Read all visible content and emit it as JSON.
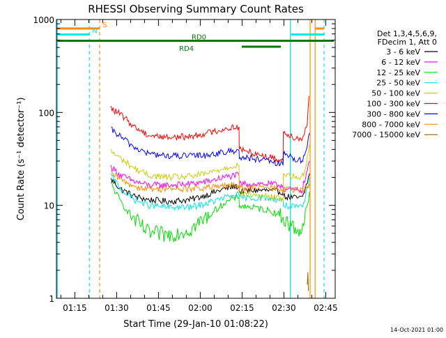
{
  "chart_data": {
    "type": "line",
    "title": "RHESSI Observing Summary Count Rates",
    "xlabel": "Start Time (29-Jan-10 01:08:22)",
    "ylabel": "Count Rate (s⁻¹ detector⁻¹)",
    "yscale": "log",
    "ylim": [
      1,
      1000
    ],
    "xlim_minutes": [
      0,
      100
    ],
    "y_ticks": [
      {
        "value": 1,
        "label": "1"
      },
      {
        "value": 10,
        "label": "10"
      },
      {
        "value": 100,
        "label": "100"
      },
      {
        "value": 1000,
        "label": "1000"
      }
    ],
    "x_ticks": [
      {
        "value": 6.6,
        "label": "01:15"
      },
      {
        "value": 21.6,
        "label": "01:30"
      },
      {
        "value": 36.6,
        "label": "01:45"
      },
      {
        "value": 51.6,
        "label": "02:00"
      },
      {
        "value": 66.6,
        "label": "02:15"
      },
      {
        "value": 81.6,
        "label": "02:30"
      },
      {
        "value": 96.6,
        "label": "02:45"
      }
    ],
    "footer": "14-Oct-2021 01:00",
    "legend": {
      "header": [
        "Det 1,3,4,5,6,9,",
        "FDecim 1, Att 0"
      ],
      "entries": [
        {
          "label": "3 - 6 keV",
          "color": "#000000"
        },
        {
          "label": "6 - 12 keV",
          "color": "#ff00ff"
        },
        {
          "label": "12 - 25 keV",
          "color": "#00dd00"
        },
        {
          "label": "25 - 50 keV",
          "color": "#00e5e5"
        },
        {
          "label": "50 - 100 keV",
          "color": "#cccc00"
        },
        {
          "label": "100 - 300 keV",
          "color": "#ff0000"
        },
        {
          "label": "300 - 800 keV",
          "color": "#0000ff"
        },
        {
          "label": "800 - 7000 keV",
          "color": "#ff8c00"
        },
        {
          "label": "7000 - 15000 keV",
          "color": "#886600"
        }
      ]
    },
    "data_gaps": [
      [
        0,
        19.6
      ],
      [
        93.8,
        100
      ]
    ],
    "series": [
      {
        "name": "3 - 6 keV",
        "color": "#000000",
        "points": [
          [
            19.6,
            19
          ],
          [
            23,
            15
          ],
          [
            28,
            12.5
          ],
          [
            33,
            11.5
          ],
          [
            40,
            11
          ],
          [
            48,
            11.5
          ],
          [
            54,
            13
          ],
          [
            60,
            15
          ],
          [
            64,
            16
          ],
          [
            65.5,
            16
          ],
          [
            65.6,
            14
          ],
          [
            70,
            14.5
          ],
          [
            75,
            14.5
          ],
          [
            80,
            14
          ],
          [
            81.3,
            14
          ],
          [
            81.4,
            12.5
          ],
          [
            86,
            12
          ],
          [
            88,
            12
          ],
          [
            89,
            14
          ],
          [
            90,
            18
          ],
          [
            90.8,
            22
          ]
        ]
      },
      {
        "name": "6 - 12 keV",
        "color": "#ff00ff",
        "points": [
          [
            19.6,
            26
          ],
          [
            23,
            21
          ],
          [
            28,
            18
          ],
          [
            33,
            16.5
          ],
          [
            40,
            16.5
          ],
          [
            48,
            17
          ],
          [
            54,
            18
          ],
          [
            60,
            20
          ],
          [
            64,
            21
          ],
          [
            65.5,
            21
          ],
          [
            65.6,
            17
          ],
          [
            70,
            17
          ],
          [
            75,
            17
          ],
          [
            80,
            16.5
          ],
          [
            81.3,
            16.5
          ],
          [
            81.4,
            15
          ],
          [
            86,
            14.5
          ],
          [
            88,
            14.5
          ],
          [
            89,
            18
          ],
          [
            90,
            24
          ],
          [
            90.8,
            30
          ]
        ]
      },
      {
        "name": "12 - 25 keV",
        "color": "#00dd00",
        "points": [
          [
            19.6,
            17
          ],
          [
            23,
            11
          ],
          [
            28,
            7
          ],
          [
            33,
            5
          ],
          [
            40,
            4.8
          ],
          [
            48,
            5.5
          ],
          [
            54,
            7.5
          ],
          [
            60,
            10.5
          ],
          [
            64,
            12
          ],
          [
            65.5,
            12
          ],
          [
            65.6,
            10
          ],
          [
            70,
            9.5
          ],
          [
            75,
            9
          ],
          [
            80,
            8
          ],
          [
            81.3,
            7.5
          ],
          [
            81.4,
            7
          ],
          [
            86,
            5.5
          ],
          [
            88,
            5.5
          ],
          [
            89,
            7
          ],
          [
            90,
            10
          ],
          [
            90.8,
            14
          ]
        ]
      },
      {
        "name": "25 - 50 keV",
        "color": "#00e5e5",
        "points": [
          [
            19.6,
            21
          ],
          [
            23,
            15
          ],
          [
            28,
            11.5
          ],
          [
            33,
            10
          ],
          [
            40,
            9.5
          ],
          [
            48,
            9.5
          ],
          [
            54,
            10.5
          ],
          [
            60,
            12
          ],
          [
            64,
            13
          ],
          [
            65.5,
            13
          ],
          [
            65.6,
            12
          ],
          [
            70,
            12
          ],
          [
            75,
            12
          ],
          [
            80,
            11.5
          ],
          [
            81.3,
            11.5
          ],
          [
            81.4,
            10
          ],
          [
            86,
            9.5
          ],
          [
            88,
            9.5
          ],
          [
            89,
            11
          ],
          [
            90,
            15
          ],
          [
            90.8,
            20
          ]
        ]
      },
      {
        "name": "50 - 100 keV",
        "color": "#cccc00",
        "points": [
          [
            19.6,
            38
          ],
          [
            23,
            32
          ],
          [
            28,
            25
          ],
          [
            33,
            21
          ],
          [
            40,
            20
          ],
          [
            48,
            20.5
          ],
          [
            54,
            22
          ],
          [
            60,
            25
          ],
          [
            64,
            27
          ],
          [
            65.5,
            27
          ],
          [
            65.6,
            13.5
          ],
          [
            70,
            13
          ],
          [
            75,
            12.5
          ],
          [
            80,
            12
          ],
          [
            81.3,
            11.5
          ],
          [
            81.4,
            22
          ],
          [
            86,
            20
          ],
          [
            88,
            19.5
          ],
          [
            89,
            24
          ],
          [
            90,
            32
          ],
          [
            90.8,
            45
          ]
        ]
      },
      {
        "name": "100 - 300 keV",
        "color": "#ff0000",
        "points": [
          [
            19.6,
            110
          ],
          [
            23,
            95
          ],
          [
            28,
            70
          ],
          [
            33,
            57
          ],
          [
            40,
            54
          ],
          [
            48,
            55
          ],
          [
            54,
            60
          ],
          [
            60,
            66
          ],
          [
            64,
            70
          ],
          [
            65.5,
            70
          ],
          [
            65.6,
            40
          ],
          [
            70,
            37
          ],
          [
            75,
            34
          ],
          [
            80,
            31
          ],
          [
            81.3,
            30
          ],
          [
            81.4,
            62
          ],
          [
            86,
            53
          ],
          [
            88,
            52
          ],
          [
            89,
            60
          ],
          [
            90,
            80
          ],
          [
            90.6,
            150
          ]
        ]
      },
      {
        "name": "300 - 800 keV",
        "color": "#0000ff",
        "points": [
          [
            19.6,
            65
          ],
          [
            23,
            55
          ],
          [
            28,
            42
          ],
          [
            33,
            36
          ],
          [
            40,
            34
          ],
          [
            48,
            34
          ],
          [
            54,
            35
          ],
          [
            60,
            37
          ],
          [
            64,
            39
          ],
          [
            65.5,
            39
          ],
          [
            65.6,
            33
          ],
          [
            70,
            32
          ],
          [
            75,
            30
          ],
          [
            80,
            28
          ],
          [
            81.3,
            27
          ],
          [
            81.4,
            37
          ],
          [
            86,
            31
          ],
          [
            88,
            30
          ],
          [
            89,
            35
          ],
          [
            90,
            45
          ],
          [
            90.8,
            60
          ]
        ]
      },
      {
        "name": "800 - 7000 keV",
        "color": "#ff8c00",
        "points": [
          [
            19.6,
            22
          ],
          [
            23,
            19
          ],
          [
            28,
            16
          ],
          [
            33,
            15
          ],
          [
            40,
            15
          ],
          [
            48,
            15
          ],
          [
            54,
            15.5
          ],
          [
            60,
            16
          ],
          [
            64,
            16.5
          ],
          [
            65.5,
            16.5
          ],
          [
            65.6,
            15.5
          ],
          [
            70,
            15.5
          ],
          [
            75,
            15.5
          ],
          [
            80,
            15
          ],
          [
            81.3,
            15
          ],
          [
            81.4,
            15
          ],
          [
            86,
            14.5
          ],
          [
            88,
            14.5
          ],
          [
            89,
            15
          ],
          [
            90,
            16
          ],
          [
            90.8,
            17
          ]
        ]
      },
      {
        "name": "7000 - 15000 keV",
        "color": "#886600",
        "points": [
          [
            90.0,
            1.4
          ],
          [
            90.2,
            1.9
          ],
          [
            90.4,
            1.2
          ]
        ]
      }
    ],
    "vertical_markers": [
      {
        "x": 0.3,
        "color": "#00e5e5",
        "dash": "solid"
      },
      {
        "x": 11.8,
        "color": "#00e5e5",
        "dash": "dashed"
      },
      {
        "x": 15.5,
        "color": "#ff8c00",
        "dash": "dashed"
      },
      {
        "x": 83.9,
        "color": "#00e5e5",
        "dash": "solid"
      },
      {
        "x": 91.0,
        "color": "#ff8c00",
        "dash": "solid"
      },
      {
        "x": 92.8,
        "color": "#ff8c00",
        "dash": "solid"
      },
      {
        "x": 96.0,
        "color": "#00e5e5",
        "dash": "dashed"
      }
    ],
    "flag_bars": [
      {
        "label": "S",
        "color": "#ff8c00",
        "segments": [
          [
            0.3,
            15.5
          ],
          [
            93.0,
            96.0
          ]
        ],
        "level": 800,
        "label_x": 16.6
      },
      {
        "label": "N",
        "color": "#00e5e5",
        "segments": [
          [
            0.3,
            11.8
          ],
          [
            84.2,
            96.0
          ]
        ],
        "level": 690,
        "label_x": 12.8
      },
      {
        "label": "RD0",
        "color": "#007700",
        "segments": [
          [
            0.3,
            99.5
          ]
        ],
        "level": 590,
        "label_x": 48.5
      },
      {
        "label": "RD4",
        "color": "#007700",
        "segments": [
          [
            66.5,
            80.5
          ]
        ],
        "level": 510,
        "label_x": 44.0
      }
    ]
  }
}
